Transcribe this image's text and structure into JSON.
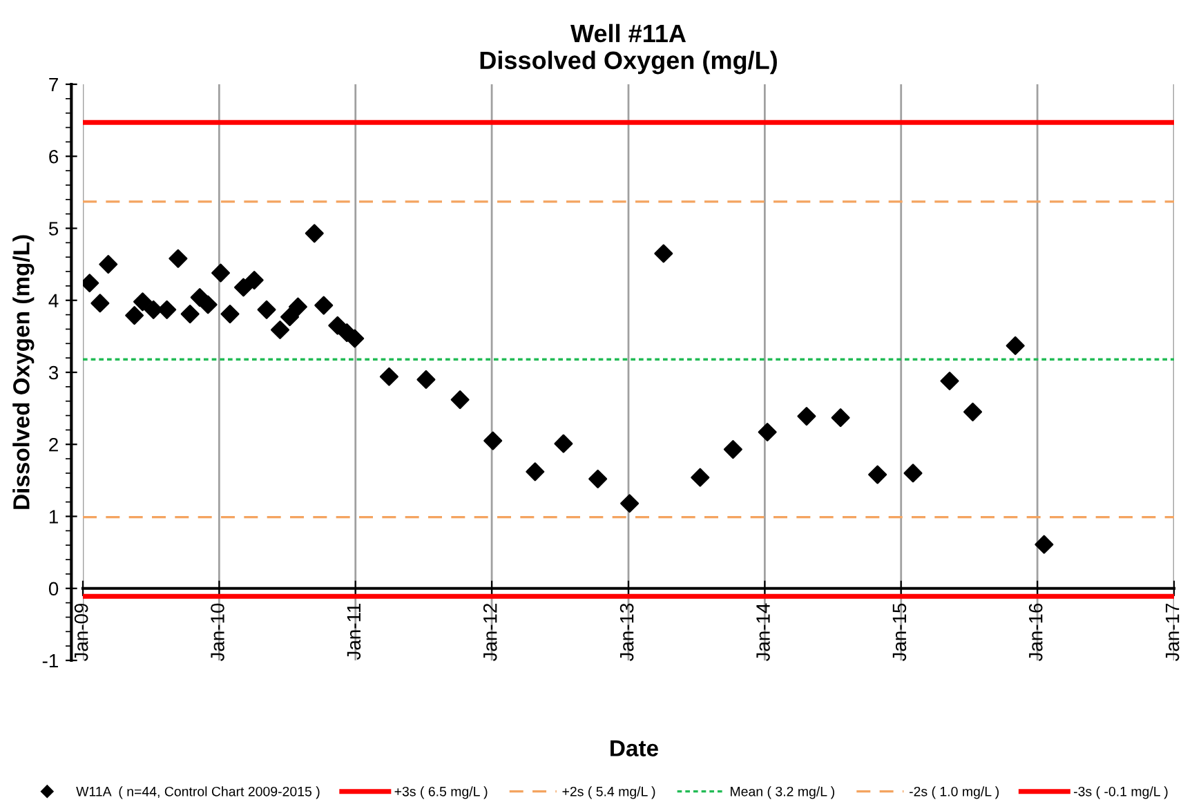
{
  "chart_data": {
    "type": "scatter",
    "title": "Well #11A\nDissolved Oxygen (mg/L)",
    "xlabel": "Date",
    "ylabel": "Dissolved Oxygen (mg/L)",
    "x": [
      "2009-01-19",
      "2009-02-16",
      "2009-03-10",
      "2009-05-19",
      "2009-06-10",
      "2009-07-09",
      "2009-08-14",
      "2009-09-13",
      "2009-10-15",
      "2009-11-10",
      "2009-12-02",
      "2010-01-05",
      "2010-01-30",
      "2010-03-07",
      "2010-04-05",
      "2010-05-08",
      "2010-06-13",
      "2010-07-09",
      "2010-07-31",
      "2010-09-13",
      "2010-10-08",
      "2010-11-14",
      "2010-12-09",
      "2010-12-30",
      "2011-04-01",
      "2011-07-09",
      "2011-10-08",
      "2012-01-04",
      "2012-04-26",
      "2012-07-11",
      "2012-10-11",
      "2013-01-04",
      "2013-04-05",
      "2013-07-12",
      "2013-10-08",
      "2014-01-08",
      "2014-04-23",
      "2014-07-23",
      "2014-10-30",
      "2015-02-02",
      "2015-05-11",
      "2015-07-12",
      "2015-11-03",
      "2016-01-19"
    ],
    "series": [
      {
        "name": "W11A  ( n=44, Control Chart 2009-2015 )",
        "color": "#000000",
        "values": [
          4.24,
          3.96,
          4.5,
          3.79,
          3.98,
          3.87,
          3.87,
          4.58,
          3.81,
          4.04,
          3.94,
          4.38,
          3.81,
          4.18,
          4.28,
          3.87,
          3.59,
          3.77,
          3.91,
          4.93,
          3.93,
          3.65,
          3.55,
          3.47,
          2.94,
          2.9,
          2.62,
          2.05,
          1.62,
          2.01,
          1.52,
          1.18,
          4.65,
          1.54,
          1.93,
          2.17,
          2.39,
          2.37,
          1.58,
          1.6,
          2.88,
          2.45,
          3.37,
          0.61
        ]
      }
    ],
    "marker": "diamond",
    "ref_lines": [
      {
        "axis": "y",
        "value": 6.47,
        "label": "+3s ( 6.5 mg/L )",
        "color": "#ff0000",
        "line_style": "solid"
      },
      {
        "axis": "y",
        "value": 5.37,
        "label": "+2s ( 5.4 mg/L )",
        "color": "#f4a460",
        "line_style": "dashed"
      },
      {
        "axis": "y",
        "value": 3.18,
        "label": "Mean ( 3.2 mg/L )",
        "color": "#22bb55",
        "line_style": "dotted"
      },
      {
        "axis": "y",
        "value": 0.99,
        "label": "-2s ( 1.0 mg/L )",
        "color": "#f4a460",
        "line_style": "dashed"
      },
      {
        "axis": "y",
        "value": -0.11,
        "label": "-3s ( -0.1 mg/L )",
        "color": "#ff0000",
        "line_style": "solid"
      }
    ],
    "xlim": [
      "2009-01-01",
      "2017-01-01"
    ],
    "xticks": [
      {
        "value": "2009-01-01",
        "label": "Jan-09"
      },
      {
        "value": "2010-01-01",
        "label": "Jan-10"
      },
      {
        "value": "2011-01-01",
        "label": "Jan-11"
      },
      {
        "value": "2012-01-01",
        "label": "Jan-12"
      },
      {
        "value": "2013-01-01",
        "label": "Jan-13"
      },
      {
        "value": "2014-01-01",
        "label": "Jan-14"
      },
      {
        "value": "2015-01-01",
        "label": "Jan-15"
      },
      {
        "value": "2016-01-01",
        "label": "Jan-16"
      },
      {
        "value": "2017-01-01",
        "label": "Jan-17"
      }
    ],
    "ylim": [
      -1,
      7
    ],
    "yticks": [
      -1,
      0,
      1,
      2,
      3,
      4,
      5,
      6,
      7
    ],
    "grid": "x",
    "legend": "bottom"
  }
}
